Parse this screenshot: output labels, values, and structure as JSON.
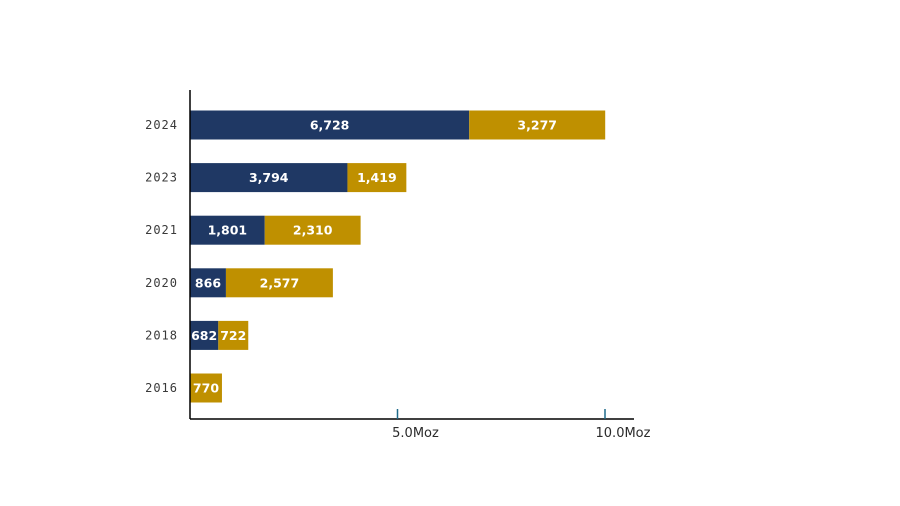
{
  "chart_data": {
    "type": "bar",
    "orientation": "horizontal",
    "stacked": true,
    "categories": [
      "2024",
      "2023",
      "2021",
      "2020",
      "2018",
      "2016"
    ],
    "series": [
      {
        "values": [
          6728,
          3794,
          1801,
          866,
          682,
          0
        ],
        "labels": [
          "6,728",
          "3,794",
          "1,801",
          "866",
          "682",
          ""
        ],
        "color": "#1f3864"
      },
      {
        "values": [
          3277,
          1419,
          2310,
          2577,
          722,
          770
        ],
        "labels": [
          "3,277",
          "1,419",
          "2,310",
          "2,577",
          "722",
          "770"
        ],
        "color": "#bf9000"
      }
    ],
    "x_ticks": [
      {
        "value": 5000,
        "label": "5.0Moz"
      },
      {
        "value": 10000,
        "label": "10.0Moz"
      }
    ],
    "xlim": [
      0,
      10650
    ],
    "title": "",
    "xlabel": "",
    "ylabel": "",
    "grid": false,
    "legend": "none"
  }
}
